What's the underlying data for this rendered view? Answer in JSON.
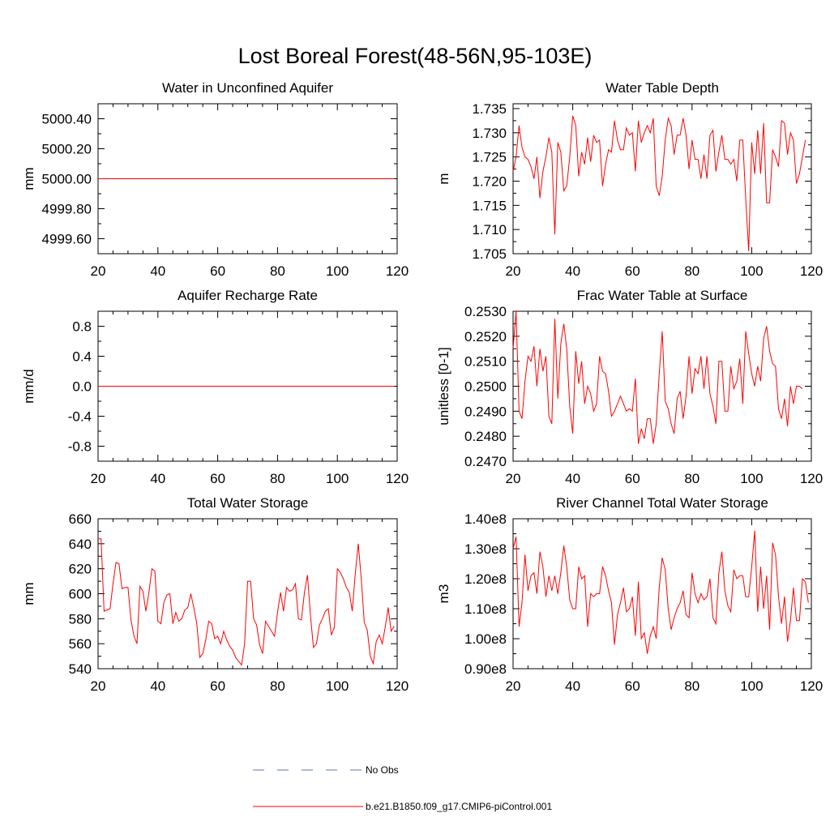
{
  "figure": {
    "title": "Lost Boreal Forest(48-56N,95-103E)",
    "line_color": "#ff0000",
    "obs_color": "#6070c0",
    "legend": [
      {
        "label": "No Obs",
        "style": "dashed",
        "color": "#6070c0"
      },
      {
        "label": "b.e21.B1850.f09_g17.CMIP6-piControl.001",
        "style": "solid",
        "color": "#ff0000"
      }
    ]
  },
  "chart_data": [
    {
      "type": "line",
      "title": "Water in Unconfined Aquifer",
      "ylabel": "mm",
      "xlim": [
        20,
        120
      ],
      "ylim": [
        4999.5,
        5000.5
      ],
      "xticks": [
        20,
        40,
        60,
        80,
        100,
        120
      ],
      "yticks": [
        4999.6,
        4999.8,
        5000.0,
        5000.2,
        5000.4
      ],
      "ytick_labels": [
        "4999.60",
        "4999.80",
        "5000.00",
        "5000.20",
        "5000.40"
      ],
      "x_start": 20,
      "x_step": 1,
      "series": [
        {
          "name": "b.e21.B1850.f09_g17.CMIP6-piControl.001",
          "values": [
            5000.0,
            5000.0
          ],
          "x": [
            20,
            119
          ]
        }
      ]
    },
    {
      "type": "line",
      "title": "Water Table Depth",
      "ylabel": "m",
      "xlim": [
        20,
        120
      ],
      "ylim": [
        1.705,
        1.736
      ],
      "xticks": [
        20,
        40,
        60,
        80,
        100,
        120
      ],
      "yticks": [
        1.705,
        1.71,
        1.715,
        1.72,
        1.725,
        1.73,
        1.735
      ],
      "ytick_labels": [
        "1.705",
        "1.710",
        "1.715",
        "1.720",
        "1.725",
        "1.730",
        "1.735"
      ],
      "x_start": 20,
      "x_step": 1,
      "series": [
        {
          "name": "b.e21.B1850.f09_g17.CMIP6-piControl.001",
          "values": [
            1.722,
            1.725,
            1.7315,
            1.727,
            1.725,
            1.7245,
            1.723,
            1.7205,
            1.725,
            1.7165,
            1.722,
            1.725,
            1.729,
            1.726,
            1.709,
            1.728,
            1.726,
            1.718,
            1.719,
            1.725,
            1.7335,
            1.7315,
            1.721,
            1.726,
            1.7235,
            1.729,
            1.724,
            1.7295,
            1.728,
            1.7285,
            1.719,
            1.7235,
            1.7265,
            1.726,
            1.7325,
            1.7285,
            1.7265,
            1.7265,
            1.731,
            1.7295,
            1.73,
            1.722,
            1.7325,
            1.728,
            1.73,
            1.7315,
            1.73,
            1.733,
            1.719,
            1.717,
            1.721,
            1.7285,
            1.733,
            1.7315,
            1.7255,
            1.7295,
            1.7295,
            1.733,
            1.7295,
            1.7225,
            1.7285,
            1.7245,
            1.7245,
            1.7205,
            1.7255,
            1.7205,
            1.7295,
            1.7305,
            1.722,
            1.726,
            1.7295,
            1.7245,
            1.7245,
            1.7235,
            1.7245,
            1.72,
            1.7285,
            1.7285,
            1.7165,
            1.7055,
            1.728,
            1.7215,
            1.7305,
            1.7215,
            1.732,
            1.7155,
            1.7155,
            1.7265,
            1.725,
            1.723,
            1.7325,
            1.732,
            1.7255,
            1.73,
            1.7285,
            1.7195,
            1.7215,
            1.725,
            1.7285
          ]
        }
      ]
    },
    {
      "type": "line",
      "title": "Aquifer Recharge Rate",
      "ylabel": "mm/d",
      "xlim": [
        20,
        120
      ],
      "ylim": [
        -1.0,
        1.0
      ],
      "xticks": [
        20,
        40,
        60,
        80,
        100,
        120
      ],
      "yticks": [
        -0.8,
        -0.4,
        0.0,
        0.4,
        0.8
      ],
      "ytick_labels": [
        "-0.8",
        "-0.4",
        "0.0",
        "0.4",
        "0.8"
      ],
      "x_start": 20,
      "x_step": 1,
      "series": [
        {
          "name": "b.e21.B1850.f09_g17.CMIP6-piControl.001",
          "values": [
            0.0,
            0.0
          ],
          "x": [
            20,
            119
          ]
        }
      ]
    },
    {
      "type": "line",
      "title": "Frac Water Table at Surface",
      "ylabel": "unitless [0-1]",
      "xlim": [
        20,
        120
      ],
      "ylim": [
        0.247,
        0.253
      ],
      "xticks": [
        20,
        40,
        60,
        80,
        100,
        120
      ],
      "yticks": [
        0.247,
        0.248,
        0.249,
        0.25,
        0.251,
        0.252,
        0.253
      ],
      "ytick_labels": [
        "0.2470",
        "0.2480",
        "0.2490",
        "0.2500",
        "0.2510",
        "0.2520",
        "0.2530"
      ],
      "x_start": 20,
      "x_step": 1,
      "series": [
        {
          "name": "b.e21.B1850.f09_g17.CMIP6-piControl.001",
          "values": [
            0.2515,
            0.253,
            0.249,
            0.2487,
            0.2502,
            0.2512,
            0.251,
            0.2516,
            0.25,
            0.2515,
            0.2506,
            0.2512,
            0.2488,
            0.2485,
            0.2527,
            0.2495,
            0.2517,
            0.2525,
            0.2515,
            0.2492,
            0.2481,
            0.2514,
            0.2501,
            0.251,
            0.2493,
            0.25,
            0.2497,
            0.249,
            0.2493,
            0.2512,
            0.2506,
            0.2505,
            0.2498,
            0.2488,
            0.249,
            0.2493,
            0.2496,
            0.2493,
            0.249,
            0.2491,
            0.249,
            0.2503,
            0.2477,
            0.2483,
            0.2479,
            0.2487,
            0.2487,
            0.2477,
            0.2485,
            0.2505,
            0.2522,
            0.2494,
            0.2491,
            0.2485,
            0.2481,
            0.2495,
            0.2498,
            0.2487,
            0.2496,
            0.2512,
            0.2497,
            0.2507,
            0.2505,
            0.2512,
            0.2499,
            0.2512,
            0.2497,
            0.2492,
            0.2485,
            0.251,
            0.251,
            0.249,
            0.249,
            0.2508,
            0.2499,
            0.2502,
            0.2511,
            0.2493,
            0.2522,
            0.2513,
            0.2505,
            0.25,
            0.2508,
            0.2502,
            0.2519,
            0.2524,
            0.2514,
            0.2509,
            0.2508,
            0.2491,
            0.2487,
            0.2495,
            0.2484,
            0.25,
            0.2493,
            0.25,
            0.25,
            0.2499
          ]
        }
      ]
    },
    {
      "type": "line",
      "title": "Total Water Storage",
      "ylabel": "mm",
      "xlim": [
        20,
        120
      ],
      "ylim": [
        540,
        660
      ],
      "xticks": [
        20,
        40,
        60,
        80,
        100,
        120
      ],
      "yticks": [
        540,
        560,
        580,
        600,
        620,
        640,
        660
      ],
      "ytick_labels": [
        "540",
        "560",
        "580",
        "600",
        "620",
        "640",
        "660"
      ],
      "x_start": 20,
      "x_step": 1,
      "series": [
        {
          "name": "b.e21.B1850.f09_g17.CMIP6-piControl.001",
          "values": [
            644,
            644,
            586,
            587,
            588,
            608,
            625,
            624,
            604,
            605,
            605,
            579,
            566,
            560,
            606,
            602,
            586,
            601,
            620,
            618,
            578,
            576,
            593,
            599,
            600,
            576,
            585,
            578,
            580,
            587,
            589,
            600,
            589,
            576,
            549,
            552,
            563,
            578,
            576,
            564,
            566,
            560,
            570,
            563,
            558,
            555,
            549,
            546,
            543,
            560,
            610,
            610,
            580,
            575,
            559,
            552,
            578,
            574,
            570,
            566,
            585,
            601,
            586,
            605,
            602,
            603,
            608,
            580,
            579,
            601,
            615,
            583,
            557,
            560,
            575,
            580,
            586,
            588,
            567,
            573,
            620,
            617,
            612,
            605,
            601,
            586,
            616,
            640,
            612,
            577,
            571,
            550,
            544,
            562,
            567,
            560,
            573,
            589,
            570,
            574
          ]
        }
      ]
    },
    {
      "type": "line",
      "title": "River Channel Total Water Storage",
      "ylabel": "m3",
      "xlim": [
        20,
        120
      ],
      "ylim": [
        90000000,
        140000000
      ],
      "xticks": [
        20,
        40,
        60,
        80,
        100,
        120
      ],
      "yticks": [
        90000000,
        100000000,
        110000000,
        120000000,
        130000000,
        140000000
      ],
      "ytick_labels": [
        "0.90e8",
        "1.00e8",
        "1.10e8",
        "1.20e8",
        "1.30e8",
        "1.40e8"
      ],
      "x_start": 20,
      "x_step": 1,
      "series": [
        {
          "name": "b.e21.B1850.f09_g17.CMIP6-piControl.001",
          "values": [
            130000000,
            134000000,
            104000000,
            112000000,
            128000000,
            116000000,
            121000000,
            122000000,
            115000000,
            129000000,
            124000000,
            114000000,
            121000000,
            116000000,
            121000000,
            115000000,
            122000000,
            131000000,
            124000000,
            113000000,
            110000000,
            110000000,
            124000000,
            120000000,
            121000000,
            104000000,
            115000000,
            114000000,
            115000000,
            115000000,
            124000000,
            121000000,
            116000000,
            112000000,
            98000000,
            108000000,
            112000000,
            117000000,
            109000000,
            110000000,
            114000000,
            101000000,
            119000000,
            100000000,
            102000000,
            95000000,
            101000000,
            104000000,
            100000000,
            117000000,
            127000000,
            123000000,
            110000000,
            103000000,
            107000000,
            110000000,
            112000000,
            116000000,
            108000000,
            107000000,
            122000000,
            115000000,
            112000000,
            115000000,
            113000000,
            114000000,
            120000000,
            107000000,
            105000000,
            122000000,
            129000000,
            116000000,
            111000000,
            109000000,
            123000000,
            120000000,
            121000000,
            121000000,
            114000000,
            114000000,
            124000000,
            136000000,
            109000000,
            124000000,
            110000000,
            121000000,
            103000000,
            132000000,
            128000000,
            114000000,
            105000000,
            114000000,
            99000000,
            106000000,
            117000000,
            106000000,
            106000000,
            120000000,
            119000000,
            112000000
          ]
        }
      ]
    }
  ]
}
